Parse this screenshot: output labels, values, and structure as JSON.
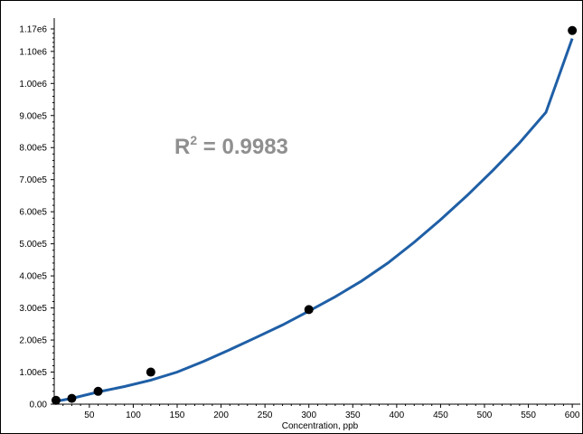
{
  "chart_data": {
    "type": "scatter",
    "title": "",
    "xlabel": "Concentration, ppb",
    "ylabel": "",
    "xlim": [
      10,
      605
    ],
    "ylim": [
      0,
      1170000
    ],
    "grid": false,
    "x_ticks": [
      50,
      100,
      150,
      200,
      250,
      300,
      350,
      400,
      450,
      500,
      550,
      600
    ],
    "y_ticks": [
      {
        "value": 0,
        "label": "0.00"
      },
      {
        "value": 100000,
        "label": "1.00e5"
      },
      {
        "value": 200000,
        "label": "2.00e5"
      },
      {
        "value": 300000,
        "label": "3.00e5"
      },
      {
        "value": 400000,
        "label": "4.00e5"
      },
      {
        "value": 500000,
        "label": "5.00e5"
      },
      {
        "value": 600000,
        "label": "6.00e5"
      },
      {
        "value": 700000,
        "label": "7.00e5"
      },
      {
        "value": 800000,
        "label": "8.00e5"
      },
      {
        "value": 900000,
        "label": "9.00e5"
      },
      {
        "value": 1000000,
        "label": "1.00e6"
      },
      {
        "value": 1100000,
        "label": "1.10e6"
      },
      {
        "value": 1170000,
        "label": "1.17e6"
      }
    ],
    "points": [
      {
        "x": 12,
        "y": 12000
      },
      {
        "x": 30,
        "y": 18000
      },
      {
        "x": 60,
        "y": 40000
      },
      {
        "x": 120,
        "y": 100000
      },
      {
        "x": 300,
        "y": 295000
      },
      {
        "x": 600,
        "y": 1165000
      }
    ],
    "fit_curve": {
      "color": "#1f5fa6",
      "x": [
        10,
        30,
        60,
        90,
        120,
        150,
        180,
        210,
        240,
        270,
        300,
        330,
        360,
        390,
        420,
        450,
        480,
        510,
        540,
        570,
        600
      ],
      "y": [
        8000,
        18000,
        38000,
        55000,
        75000,
        100000,
        133000,
        170000,
        208000,
        247000,
        290000,
        335000,
        384000,
        440000,
        505000,
        575000,
        650000,
        730000,
        815000,
        910000,
        1140000
      ]
    },
    "annotations": [
      {
        "text_main": "R",
        "text_sup": "2",
        "text_rest": " = 0.9983",
        "color": "#8f8f8f"
      }
    ]
  }
}
